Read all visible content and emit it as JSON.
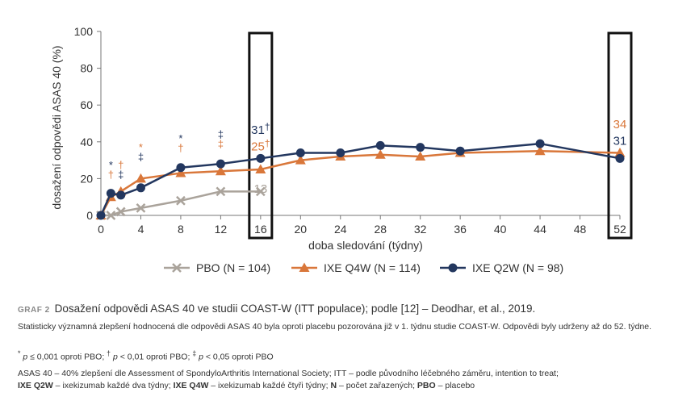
{
  "chart_data": {
    "type": "line",
    "ylabel": "dosažení odpovědi ASAS 40 (%)",
    "xlabel": "doba sledování (týdny)",
    "ylim": [
      0,
      100
    ],
    "xlim": [
      0,
      52
    ],
    "yticks": [
      0,
      20,
      40,
      60,
      80,
      100
    ],
    "xticks": [
      0,
      4,
      8,
      12,
      16,
      20,
      24,
      28,
      32,
      36,
      40,
      44,
      48,
      52
    ],
    "grid": false,
    "legend_position": "bottom",
    "highlight_boxes": [
      16,
      52
    ],
    "series": [
      {
        "name": "PBO (N = 104)",
        "color": "#aaa39b",
        "marker": "x",
        "x": [
          0,
          1,
          2,
          4,
          8,
          12,
          16
        ],
        "y": [
          0,
          0,
          2,
          4,
          8,
          13,
          13
        ]
      },
      {
        "name": "IXE Q4W (N = 114)",
        "color": "#d9773a",
        "marker": "triangle",
        "x": [
          0,
          1,
          2,
          4,
          8,
          12,
          16,
          20,
          24,
          28,
          32,
          36,
          44,
          52
        ],
        "y": [
          0,
          10,
          13,
          20,
          23,
          24,
          25,
          30,
          32,
          33,
          32,
          34,
          35,
          34
        ]
      },
      {
        "name": "IXE Q2W (N = 98)",
        "color": "#23375f",
        "marker": "circle",
        "x": [
          0,
          1,
          2,
          4,
          8,
          12,
          16,
          20,
          24,
          28,
          32,
          36,
          44,
          52
        ],
        "y": [
          0,
          12,
          11,
          15,
          26,
          28,
          31,
          34,
          34,
          38,
          37,
          35,
          39,
          31
        ]
      }
    ],
    "annotations": [
      {
        "x": 1,
        "row": 0,
        "text": "*",
        "color": "#23375f"
      },
      {
        "x": 1,
        "row": 1,
        "text": "†",
        "color": "#d9773a"
      },
      {
        "x": 2,
        "row": 0,
        "text": "†",
        "color": "#d9773a"
      },
      {
        "x": 2,
        "row": 1,
        "text": "‡",
        "color": "#23375f"
      },
      {
        "x": 4,
        "row": 0,
        "text": "*",
        "color": "#d9773a"
      },
      {
        "x": 4,
        "row": 1,
        "text": "‡",
        "color": "#23375f"
      },
      {
        "x": 8,
        "row": 0,
        "text": "*",
        "color": "#23375f"
      },
      {
        "x": 8,
        "row": 1,
        "text": "†",
        "color": "#d9773a"
      },
      {
        "x": 12,
        "row": 0,
        "text": "‡",
        "color": "#23375f"
      },
      {
        "x": 12,
        "row": 1,
        "text": "‡",
        "color": "#d9773a"
      }
    ],
    "value_labels": [
      {
        "x": 16,
        "y": 47,
        "text": "31",
        "mark": "†",
        "color": "#23375f"
      },
      {
        "x": 16,
        "y": 38,
        "text": "25",
        "mark": "†",
        "color": "#d9773a"
      },
      {
        "x": 16,
        "y": 15,
        "text": "13",
        "mark": "",
        "color": "#aaa39b"
      },
      {
        "x": 52,
        "y": 50,
        "text": "34",
        "mark": "",
        "color": "#d9773a"
      },
      {
        "x": 52,
        "y": 41,
        "text": "31",
        "mark": "",
        "color": "#23375f"
      }
    ]
  },
  "caption": {
    "graf": "GRAF 2",
    "title": "Dosažení odpovědi ASAS 40 ve studii COAST-W (ITT populace); podle [12] – Deodhar, et al., 2019.",
    "description": "Statisticky významná zlepšení hodnocená dle odpovědi ASAS 40 byla oproti placebu pozorována již v 1. týdnu studie COAST-W. Odpovědi byly udrženy až do 52. týdne.",
    "sig1_mark": "*",
    "p1": "p",
    "sig1_text": " ≤ 0,001 oproti PBO; ",
    "sig2_mark": "†",
    "p2": "p",
    "sig2_text": " < 0,01 oproti PBO; ",
    "sig3_mark": "‡",
    "p3": "p",
    "sig3_text": " < 0,05 oproti PBO",
    "abbr1": "ASAS 40 – 40% zlepšení dle Assessment of SpondyloArthritis International Society; ITT – podle původního léčebného záměru, intention to treat;",
    "abbr2_b1": "IXE Q2W",
    "abbr2_t1": " – ixekizumab každé dva týdny; ",
    "abbr2_b2": "IXE Q4W",
    "abbr2_t2": " – ixekizumab každé čtyři týdny; ",
    "abbr2_b3": "N",
    "abbr2_t3": " – počet zařazených; ",
    "abbr2_b4": "PBO",
    "abbr2_t4": " – placebo"
  }
}
